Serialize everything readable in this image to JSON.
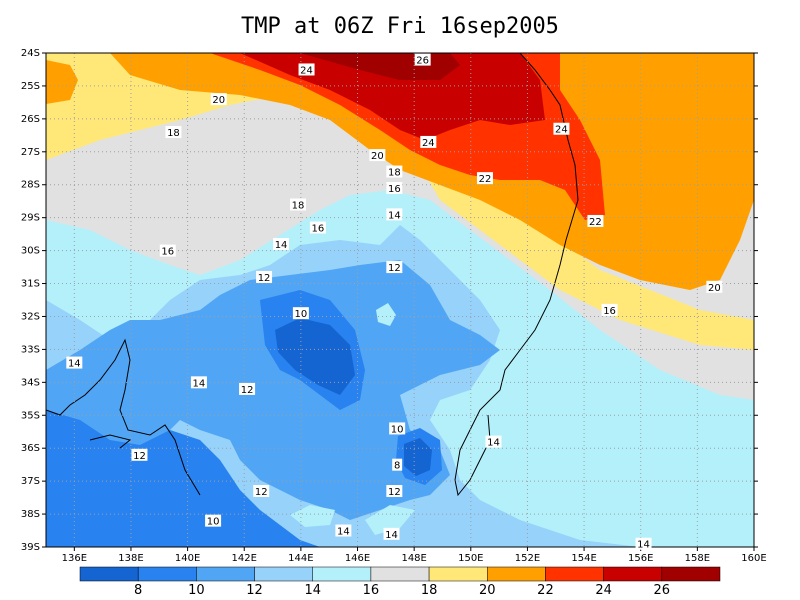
{
  "title": "TMP at 06Z Fri 16sep2005",
  "lat_ticks": [
    "24S",
    "25S",
    "26S",
    "27S",
    "28S",
    "29S",
    "30S",
    "31S",
    "32S",
    "33S",
    "34S",
    "35S",
    "36S",
    "37S",
    "38S",
    "39S"
  ],
  "lon_ticks": [
    "136E",
    "138E",
    "140E",
    "142E",
    "144E",
    "146E",
    "148E",
    "150E",
    "152E",
    "154E",
    "156E",
    "158E",
    "160E"
  ],
  "colorbar": {
    "colors": [
      "#1464d2",
      "#2882f0",
      "#50a5f5",
      "#96d2fa",
      "#b4f0fa",
      "#e1e1e1",
      "#ffe878",
      "#ffa000",
      "#ff3200",
      "#c80000",
      "#a00000"
    ],
    "labels": [
      "8",
      "10",
      "12",
      "14",
      "16",
      "18",
      "20",
      "22",
      "24",
      "26"
    ]
  },
  "contour_labels": [
    {
      "text": "26",
      "lon": 148.3,
      "lat": 24.2
    },
    {
      "text": "24",
      "lon": 144.2,
      "lat": 24.5
    },
    {
      "text": "24",
      "lon": 148.5,
      "lat": 26.7
    },
    {
      "text": "24",
      "lon": 153.2,
      "lat": 26.3
    },
    {
      "text": "22",
      "lon": 150.5,
      "lat": 27.8
    },
    {
      "text": "22",
      "lon": 154.4,
      "lat": 29.1
    },
    {
      "text": "20",
      "lon": 141.1,
      "lat": 25.4
    },
    {
      "text": "20",
      "lon": 146.7,
      "lat": 27.1
    },
    {
      "text": "20",
      "lon": 158.6,
      "lat": 31.1
    },
    {
      "text": "18",
      "lon": 139.5,
      "lat": 26.4
    },
    {
      "text": "18",
      "lon": 147.3,
      "lat": 27.6
    },
    {
      "text": "18",
      "lon": 143.9,
      "lat": 28.6
    },
    {
      "text": "16",
      "lon": 147.3,
      "lat": 28.1
    },
    {
      "text": "16",
      "lon": 144.6,
      "lat": 29.3
    },
    {
      "text": "16",
      "lon": 139.3,
      "lat": 30.0
    },
    {
      "text": "16",
      "lon": 154.9,
      "lat": 31.8
    },
    {
      "text": "14",
      "lon": 147.3,
      "lat": 28.9
    },
    {
      "text": "14",
      "lon": 143.3,
      "lat": 29.8
    },
    {
      "text": "14",
      "lon": 136.0,
      "lat": 33.4
    },
    {
      "text": "14",
      "lon": 140.4,
      "lat": 34.0
    },
    {
      "text": "14",
      "lon": 150.8,
      "lat": 35.8
    },
    {
      "text": "14",
      "lon": 145.5,
      "lat": 38.5
    },
    {
      "text": "14",
      "lon": 147.2,
      "lat": 38.6
    },
    {
      "text": "14",
      "lon": 156.1,
      "lat": 38.9
    },
    {
      "text": "12",
      "lon": 147.3,
      "lat": 30.5
    },
    {
      "text": "12",
      "lon": 142.7,
      "lat": 30.8
    },
    {
      "text": "12",
      "lon": 142.1,
      "lat": 34.2
    },
    {
      "text": "12",
      "lon": 138.3,
      "lat": 36.2
    },
    {
      "text": "12",
      "lon": 142.6,
      "lat": 37.3
    },
    {
      "text": "12",
      "lon": 147.3,
      "lat": 37.3
    },
    {
      "text": "10",
      "lon": 144.0,
      "lat": 31.9
    },
    {
      "text": "10",
      "lon": 147.4,
      "lat": 35.4
    },
    {
      "text": "10",
      "lon": 140.9,
      "lat": 38.2
    },
    {
      "text": "8",
      "lon": 147.4,
      "lat": 36.5
    }
  ]
}
